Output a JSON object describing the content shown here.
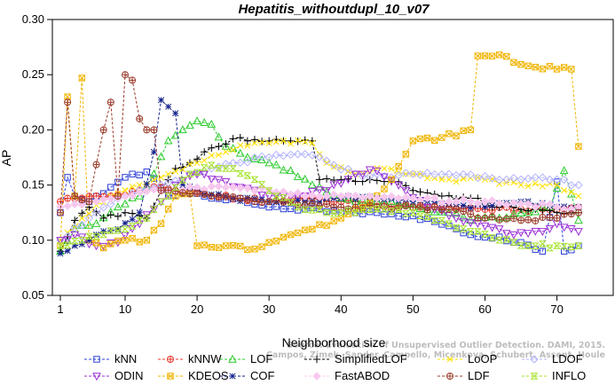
{
  "chart_data": {
    "type": "line",
    "title": "Hepatitis_withoutdupl_10_v07",
    "xlabel": "Neighborhood size",
    "ylabel": "AP",
    "xlim": [
      0,
      74
    ],
    "ylim": [
      0.05,
      0.3
    ],
    "xticks": [
      1,
      10,
      20,
      30,
      40,
      50,
      60,
      70
    ],
    "yticks": [
      0.05,
      0.1,
      0.15,
      0.2,
      0.25,
      0.3
    ],
    "ytick_labels": [
      "0.05",
      "0.10",
      "0.15",
      "0.20",
      "0.25",
      "0.30"
    ],
    "grid": false,
    "legend_position": "bottom",
    "watermark": [
      "Source: Evaluation of Unsupervised Outlier Detection. DAMI, 2015.",
      "Campos, Zimek, Sander, Campello, Micenkova, Schubert, Assent, Houle"
    ],
    "series": [
      {
        "name": "kNN",
        "color": "#2b3fd6",
        "marker": "square",
        "anchors": [
          [
            1,
            0.125
          ],
          [
            2,
            0.157
          ],
          [
            3,
            0.14
          ],
          [
            5,
            0.135
          ],
          [
            8,
            0.148
          ],
          [
            10,
            0.157
          ],
          [
            13,
            0.162
          ],
          [
            16,
            0.14
          ],
          [
            19,
            0.143
          ],
          [
            22,
            0.138
          ],
          [
            26,
            0.138
          ],
          [
            30,
            0.13
          ],
          [
            35,
            0.128
          ],
          [
            40,
            0.125
          ],
          [
            45,
            0.125
          ],
          [
            50,
            0.122
          ],
          [
            55,
            0.113
          ],
          [
            58,
            0.105
          ],
          [
            62,
            0.103
          ],
          [
            65,
            0.098
          ],
          [
            68,
            0.09
          ],
          [
            70,
            0.153
          ],
          [
            71,
            0.09
          ],
          [
            73,
            0.095
          ]
        ]
      },
      {
        "name": "kNNW",
        "color": "#e8362a",
        "marker": "circleplus",
        "anchors": [
          [
            1,
            0.135
          ],
          [
            2,
            0.138
          ],
          [
            4,
            0.138
          ],
          [
            8,
            0.14
          ],
          [
            12,
            0.145
          ],
          [
            15,
            0.148
          ],
          [
            18,
            0.145
          ],
          [
            22,
            0.14
          ],
          [
            26,
            0.138
          ],
          [
            30,
            0.135
          ],
          [
            35,
            0.138
          ],
          [
            40,
            0.135
          ],
          [
            45,
            0.133
          ],
          [
            50,
            0.13
          ],
          [
            55,
            0.13
          ],
          [
            60,
            0.128
          ],
          [
            65,
            0.128
          ],
          [
            70,
            0.128
          ],
          [
            73,
            0.13
          ]
        ]
      },
      {
        "name": "LOF",
        "color": "#2ecc2e",
        "marker": "triangle",
        "anchors": [
          [
            1,
            0.09
          ],
          [
            3,
            0.11
          ],
          [
            6,
            0.115
          ],
          [
            9,
            0.13
          ],
          [
            12,
            0.14
          ],
          [
            14,
            0.16
          ],
          [
            16,
            0.19
          ],
          [
            18,
            0.2
          ],
          [
            20,
            0.208
          ],
          [
            22,
            0.205
          ],
          [
            24,
            0.185
          ],
          [
            27,
            0.175
          ],
          [
            30,
            0.17
          ],
          [
            33,
            0.163
          ],
          [
            36,
            0.15
          ],
          [
            40,
            0.138
          ],
          [
            45,
            0.135
          ],
          [
            50,
            0.13
          ],
          [
            55,
            0.125
          ],
          [
            58,
            0.118
          ],
          [
            62,
            0.12
          ],
          [
            66,
            0.125
          ],
          [
            69,
            0.13
          ],
          [
            71,
            0.163
          ],
          [
            73,
            0.118
          ]
        ]
      },
      {
        "name": "SimplifiedLOF",
        "color": "#000000",
        "marker": "plus",
        "anchors": [
          [
            1,
            0.09
          ],
          [
            3,
            0.118
          ],
          [
            5,
            0.13
          ],
          [
            7,
            0.12
          ],
          [
            10,
            0.125
          ],
          [
            13,
            0.12
          ],
          [
            15,
            0.145
          ],
          [
            17,
            0.165
          ],
          [
            19,
            0.17
          ],
          [
            21,
            0.18
          ],
          [
            23,
            0.185
          ],
          [
            25,
            0.192
          ],
          [
            27,
            0.19
          ],
          [
            30,
            0.19
          ],
          [
            33,
            0.19
          ],
          [
            36,
            0.19
          ],
          [
            37,
            0.155
          ],
          [
            40,
            0.155
          ],
          [
            44,
            0.155
          ],
          [
            48,
            0.153
          ],
          [
            50,
            0.145
          ],
          [
            54,
            0.14
          ],
          [
            58,
            0.138
          ],
          [
            62,
            0.13
          ],
          [
            65,
            0.128
          ],
          [
            70,
            0.125
          ],
          [
            73,
            0.125
          ]
        ]
      },
      {
        "name": "LoOP",
        "color": "#ffe000",
        "marker": "cross",
        "anchors": [
          [
            1,
            0.1
          ],
          [
            4,
            0.12
          ],
          [
            8,
            0.14
          ],
          [
            12,
            0.15
          ],
          [
            16,
            0.16
          ],
          [
            20,
            0.17
          ],
          [
            24,
            0.18
          ],
          [
            28,
            0.188
          ],
          [
            32,
            0.19
          ],
          [
            36,
            0.188
          ],
          [
            38,
            0.17
          ],
          [
            42,
            0.16
          ],
          [
            46,
            0.165
          ],
          [
            50,
            0.16
          ],
          [
            55,
            0.155
          ],
          [
            60,
            0.155
          ],
          [
            65,
            0.15
          ],
          [
            70,
            0.15
          ],
          [
            73,
            0.14
          ]
        ]
      },
      {
        "name": "LDOF",
        "color": "#b3b3ff",
        "marker": "diamond",
        "anchors": [
          [
            1,
            0.1
          ],
          [
            5,
            0.12
          ],
          [
            10,
            0.14
          ],
          [
            15,
            0.15
          ],
          [
            20,
            0.16
          ],
          [
            25,
            0.17
          ],
          [
            30,
            0.175
          ],
          [
            35,
            0.178
          ],
          [
            38,
            0.172
          ],
          [
            42,
            0.16
          ],
          [
            46,
            0.158
          ],
          [
            50,
            0.16
          ],
          [
            55,
            0.16
          ],
          [
            60,
            0.158
          ],
          [
            65,
            0.155
          ],
          [
            70,
            0.155
          ],
          [
            73,
            0.15
          ]
        ]
      },
      {
        "name": "ODIN",
        "color": "#9b2fd6",
        "marker": "triangledown",
        "anchors": [
          [
            1,
            0.1
          ],
          [
            3,
            0.105
          ],
          [
            6,
            0.095
          ],
          [
            9,
            0.098
          ],
          [
            12,
            0.115
          ],
          [
            15,
            0.135
          ],
          [
            17,
            0.15
          ],
          [
            20,
            0.16
          ],
          [
            23,
            0.155
          ],
          [
            26,
            0.148
          ],
          [
            30,
            0.14
          ],
          [
            34,
            0.14
          ],
          [
            38,
            0.145
          ],
          [
            42,
            0.16
          ],
          [
            45,
            0.163
          ],
          [
            48,
            0.15
          ],
          [
            52,
            0.13
          ],
          [
            56,
            0.12
          ],
          [
            60,
            0.113
          ],
          [
            64,
            0.105
          ],
          [
            68,
            0.108
          ],
          [
            70,
            0.115
          ],
          [
            73,
            0.108
          ]
        ]
      },
      {
        "name": "KDEOS",
        "color": "#f0b400",
        "marker": "squarex",
        "anchors": [
          [
            1,
            0.095
          ],
          [
            2,
            0.23
          ],
          [
            3,
            0.14
          ],
          [
            4,
            0.247
          ],
          [
            5,
            0.1
          ],
          [
            7,
            0.093
          ],
          [
            10,
            0.1
          ],
          [
            13,
            0.1
          ],
          [
            15,
            0.115
          ],
          [
            17,
            0.14
          ],
          [
            19,
            0.142
          ],
          [
            20,
            0.095
          ],
          [
            24,
            0.095
          ],
          [
            28,
            0.092
          ],
          [
            30,
            0.098
          ],
          [
            33,
            0.105
          ],
          [
            36,
            0.11
          ],
          [
            40,
            0.12
          ],
          [
            44,
            0.135
          ],
          [
            47,
            0.155
          ],
          [
            50,
            0.19
          ],
          [
            54,
            0.193
          ],
          [
            58,
            0.2
          ],
          [
            59,
            0.267
          ],
          [
            62,
            0.268
          ],
          [
            66,
            0.258
          ],
          [
            70,
            0.255
          ],
          [
            72,
            0.255
          ],
          [
            73,
            0.185
          ],
          [
            74,
            0.147
          ]
        ]
      },
      {
        "name": "COF",
        "color": "#12208a",
        "marker": "star",
        "anchors": [
          [
            1,
            0.088
          ],
          [
            3,
            0.095
          ],
          [
            6,
            0.105
          ],
          [
            9,
            0.11
          ],
          [
            12,
            0.125
          ],
          [
            14,
            0.18
          ],
          [
            15,
            0.227
          ],
          [
            17,
            0.215
          ],
          [
            18,
            0.15
          ],
          [
            21,
            0.142
          ],
          [
            25,
            0.138
          ],
          [
            30,
            0.135
          ],
          [
            35,
            0.135
          ],
          [
            40,
            0.138
          ],
          [
            45,
            0.138
          ],
          [
            50,
            0.135
          ],
          [
            55,
            0.133
          ],
          [
            60,
            0.13
          ],
          [
            65,
            0.135
          ],
          [
            70,
            0.13
          ],
          [
            73,
            0.13
          ]
        ]
      },
      {
        "name": "FastABOD",
        "color": "#f7c8ee",
        "marker": "diamondfill",
        "anchors": [
          [
            1,
            0.13
          ],
          [
            5,
            0.135
          ],
          [
            10,
            0.14
          ],
          [
            15,
            0.145
          ],
          [
            20,
            0.148
          ],
          [
            25,
            0.148
          ],
          [
            30,
            0.145
          ],
          [
            35,
            0.14
          ],
          [
            40,
            0.14
          ],
          [
            45,
            0.138
          ],
          [
            50,
            0.138
          ],
          [
            55,
            0.135
          ],
          [
            60,
            0.135
          ],
          [
            65,
            0.133
          ],
          [
            70,
            0.13
          ],
          [
            73,
            0.13
          ]
        ]
      },
      {
        "name": "LDF",
        "color": "#9a3b2b",
        "marker": "circleplus",
        "anchors": [
          [
            1,
            0.125
          ],
          [
            2,
            0.225
          ],
          [
            3,
            0.14
          ],
          [
            5,
            0.135
          ],
          [
            7,
            0.2
          ],
          [
            8,
            0.225
          ],
          [
            9,
            0.14
          ],
          [
            10,
            0.25
          ],
          [
            11,
            0.245
          ],
          [
            12,
            0.21
          ],
          [
            13,
            0.2
          ],
          [
            14,
            0.2
          ],
          [
            15,
            0.145
          ],
          [
            18,
            0.143
          ],
          [
            22,
            0.14
          ],
          [
            26,
            0.138
          ],
          [
            30,
            0.135
          ],
          [
            35,
            0.132
          ],
          [
            40,
            0.13
          ],
          [
            45,
            0.13
          ],
          [
            50,
            0.13
          ],
          [
            55,
            0.128
          ],
          [
            60,
            0.12
          ],
          [
            65,
            0.118
          ],
          [
            70,
            0.12
          ],
          [
            73,
            0.125
          ]
        ]
      },
      {
        "name": "INFLO",
        "color": "#a6e22e",
        "marker": "hourglass",
        "anchors": [
          [
            1,
            0.095
          ],
          [
            4,
            0.1
          ],
          [
            7,
            0.105
          ],
          [
            10,
            0.11
          ],
          [
            13,
            0.12
          ],
          [
            16,
            0.14
          ],
          [
            19,
            0.16
          ],
          [
            22,
            0.168
          ],
          [
            25,
            0.165
          ],
          [
            28,
            0.155
          ],
          [
            31,
            0.14
          ],
          [
            34,
            0.13
          ],
          [
            38,
            0.125
          ],
          [
            42,
            0.125
          ],
          [
            46,
            0.128
          ],
          [
            50,
            0.125
          ],
          [
            55,
            0.115
          ],
          [
            58,
            0.108
          ],
          [
            62,
            0.1
          ],
          [
            66,
            0.095
          ],
          [
            70,
            0.095
          ],
          [
            73,
            0.095
          ]
        ]
      }
    ]
  }
}
